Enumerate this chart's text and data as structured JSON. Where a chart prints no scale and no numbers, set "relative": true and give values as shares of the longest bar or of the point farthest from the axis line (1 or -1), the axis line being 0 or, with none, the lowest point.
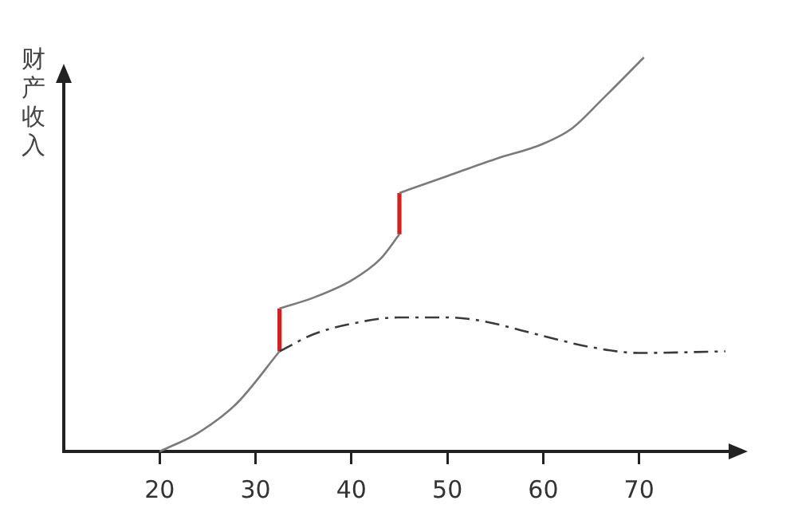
{
  "chart_data": {
    "type": "line",
    "ylabel": "财产收入",
    "relative": true,
    "xlim": [
      10,
      80
    ],
    "xticks": [
      20,
      30,
      40,
      50,
      60,
      70
    ],
    "grid": false,
    "legend": false,
    "marker": "none",
    "series": [
      {
        "color": "#7a7a7a",
        "line_style": "solid",
        "x": [
          20,
          24,
          28,
          32.5
        ],
        "values": [
          0,
          0.047,
          0.121,
          0.254
        ]
      },
      {
        "color": "#7a7a7a",
        "line_style": "solid",
        "x": [
          32.5,
          36,
          40,
          43,
          45
        ],
        "values": [
          0.363,
          0.39,
          0.434,
          0.488,
          0.551
        ]
      },
      {
        "color": "#7a7a7a",
        "line_style": "solid",
        "x": [
          45,
          50,
          55,
          60,
          63,
          66,
          70.5
        ],
        "values": [
          0.656,
          0.699,
          0.742,
          0.781,
          0.82,
          0.89,
          1
        ]
      },
      {
        "color": "#3a3a3a",
        "line_style": "dashed",
        "x": [
          32.5,
          36,
          40,
          44.8,
          50,
          53.4,
          60,
          64.7,
          70,
          79
        ],
        "values": [
          0.254,
          0.297,
          0.324,
          0.34,
          0.34,
          0.332,
          0.293,
          0.266,
          0.25,
          0.254
        ]
      },
      {
        "color": "#d42020",
        "line_style": "solid",
        "x": [
          32.5,
          32.5
        ],
        "values": [
          0.254,
          0.363
        ]
      },
      {
        "color": "#d42020",
        "line_style": "solid",
        "x": [
          45,
          45
        ],
        "values": [
          0.551,
          0.656
        ]
      }
    ]
  }
}
